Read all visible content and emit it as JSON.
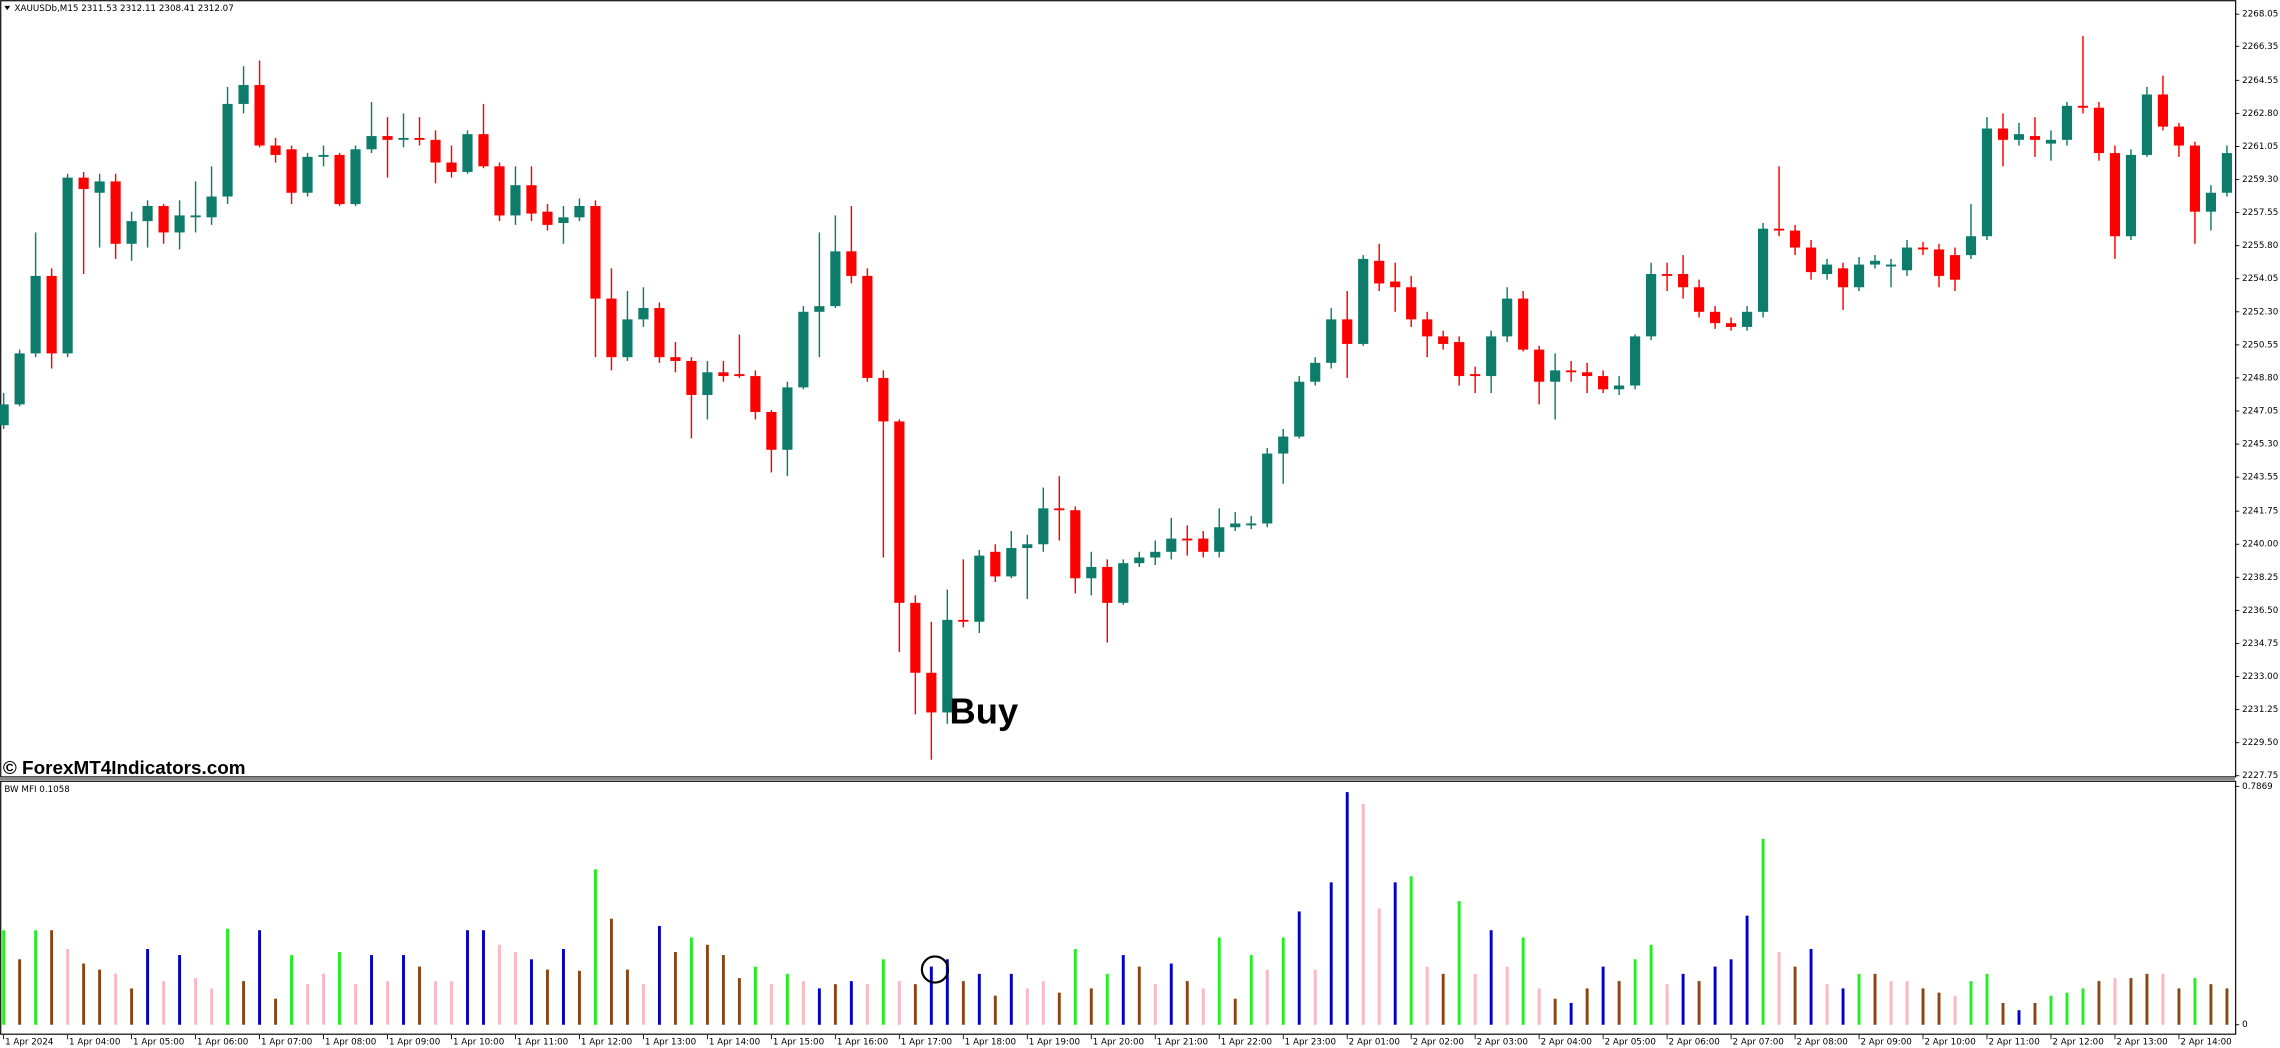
{
  "chart_data": [
    {
      "type": "candlestick",
      "title": "XAUUSDb,M15  2311.53 2312.11 2308.41 2312.07",
      "watermark": "© ForexMT4Indicators.com",
      "annotation": "Buy",
      "up_color": "#0e7c6b",
      "down_color": "#ff0000",
      "categories": [
        "1 Apr 2024",
        null,
        null,
        null,
        "1 Apr 04:00",
        null,
        null,
        null,
        "1 Apr 05:00",
        null,
        null,
        null,
        "1 Apr 06:00",
        null,
        null,
        null,
        "1 Apr 07:00",
        null,
        null,
        null,
        "1 Apr 08:00",
        null,
        null,
        null,
        "1 Apr 09:00",
        null,
        null,
        null,
        "1 Apr 10:00",
        null,
        null,
        null,
        "1 Apr 11:00",
        null,
        null,
        null,
        "1 Apr 12:00",
        null,
        null,
        null,
        "1 Apr 13:00",
        null,
        null,
        null,
        "1 Apr 14:00",
        null,
        null,
        null,
        "1 Apr 15:00",
        null,
        null,
        null,
        "1 Apr 16:00",
        null,
        null,
        null,
        "1 Apr 17:00",
        null,
        null,
        null,
        "1 Apr 18:00",
        null,
        null,
        null,
        "1 Apr 19:00",
        null,
        null,
        null,
        "1 Apr 20:00",
        null,
        null,
        null,
        "1 Apr 21:00",
        null,
        null,
        null,
        "1 Apr 22:00",
        null,
        null,
        null,
        "1 Apr 23:00",
        null,
        null,
        null,
        "2 Apr 01:00",
        null,
        null,
        null,
        "2 Apr 02:00",
        null,
        null,
        null,
        "2 Apr 03:00",
        null,
        null,
        null,
        "2 Apr 04:00",
        null,
        null,
        null,
        "2 Apr 05:00",
        null,
        null,
        null,
        "2 Apr 06:00",
        null,
        null,
        null,
        "2 Apr 07:00",
        null,
        null,
        null,
        "2 Apr 08:00",
        null,
        null,
        null,
        "2 Apr 09:00",
        null,
        null,
        null,
        "2 Apr 10:00",
        null,
        null,
        null,
        "2 Apr 11:00",
        null,
        null,
        null,
        "2 Apr 12:00",
        null,
        null,
        null,
        "2 Apr 13:00",
        null,
        null,
        null,
        "2 Apr 14:00",
        null,
        null,
        null
      ],
      "open": [
        2246.3,
        2247.4,
        2250.1,
        2254.2,
        2250.1,
        2259.4,
        2258.6,
        2259.2,
        2255.9,
        2257.1,
        2257.9,
        2256.5,
        2257.3,
        2257.3,
        2258.4,
        2263.3,
        2264.3,
        2261.1,
        2260.9,
        2258.6,
        2260.5,
        2260.6,
        2258.0,
        2260.9,
        2261.6,
        2261.4,
        2261.5,
        2261.4,
        2260.2,
        2259.7,
        2261.7,
        2260.0,
        2257.4,
        2259.0,
        2257.6,
        2257.0,
        2257.3,
        2257.9,
        2253.0,
        2249.9,
        2251.9,
        2252.5,
        2249.9,
        2249.7,
        2247.9,
        2249.1,
        2249.0,
        2248.9,
        2247.0,
        2245.0,
        2248.3,
        2252.3,
        2252.6,
        2255.5,
        2254.2,
        2248.8,
        2246.5,
        2236.9,
        2233.2,
        2231.1,
        2236.0,
        2235.9,
        2239.6,
        2238.3,
        2239.8,
        2240.0,
        2241.9,
        2241.8,
        2238.2,
        2238.8,
        2236.9,
        2239.0,
        2239.3,
        2239.6,
        2240.3,
        2240.3,
        2239.6,
        2240.9,
        2241.0,
        2241.1,
        2244.8,
        2245.7,
        2248.6,
        2249.6,
        2251.9,
        2250.6,
        2255.0,
        2253.9,
        2253.6,
        2251.9,
        2251.0,
        2250.7,
        2249.0,
        2248.9,
        2251.0,
        2253.0,
        2250.3,
        2248.6,
        2249.2,
        2249.1,
        2248.9,
        2248.2,
        2248.4,
        2251.0,
        2254.3,
        2254.3,
        2253.6,
        2252.3,
        2251.7,
        2251.5,
        2252.3,
        2256.7,
        2256.6,
        2255.7,
        2254.3,
        2254.6,
        2253.6,
        2254.8,
        2254.7,
        2254.5,
        2255.7,
        2255.6,
        2255.3,
        2255.3,
        2256.3,
        2262.0,
        2261.4,
        2261.6,
        2261.2,
        2261.4,
        2263.2,
        2263.1,
        2260.7,
        2256.3,
        2260.6,
        2263.8,
        2262.1,
        2261.1,
        2257.6,
        2258.6
      ],
      "high": [
        2248.0,
        2250.3,
        2256.5,
        2254.6,
        2259.6,
        2259.7,
        2259.6,
        2259.6,
        2257.6,
        2258.2,
        2258.0,
        2258.2,
        2259.2,
        2260.0,
        2264.2,
        2265.3,
        2265.6,
        2261.5,
        2261.1,
        2260.7,
        2261.1,
        2260.7,
        2261.1,
        2263.4,
        2262.6,
        2262.8,
        2262.6,
        2261.9,
        2261.1,
        2261.9,
        2263.3,
        2260.2,
        2260.0,
        2260.0,
        2258.0,
        2257.9,
        2258.3,
        2258.2,
        2254.6,
        2253.4,
        2253.6,
        2252.8,
        2250.7,
        2249.9,
        2249.7,
        2249.7,
        2251.1,
        2249.2,
        2247.1,
        2248.6,
        2252.6,
        2256.5,
        2257.4,
        2257.9,
        2254.6,
        2249.2,
        2246.6,
        2237.3,
        2235.9,
        2237.6,
        2239.2,
        2239.7,
        2240.0,
        2240.7,
        2240.5,
        2243.0,
        2243.6,
        2242.0,
        2239.6,
        2239.2,
        2239.2,
        2239.6,
        2240.2,
        2241.4,
        2241.0,
        2240.7,
        2241.9,
        2241.7,
        2241.5,
        2245.1,
        2246.1,
        2248.9,
        2249.9,
        2252.5,
        2253.4,
        2255.3,
        2255.9,
        2254.9,
        2254.2,
        2252.3,
        2251.3,
        2251.0,
        2249.4,
        2251.3,
        2253.6,
        2253.4,
        2250.5,
        2250.1,
        2249.7,
        2249.6,
        2249.2,
        2248.9,
        2251.1,
        2254.9,
        2254.9,
        2255.3,
        2254.0,
        2252.6,
        2252.0,
        2252.6,
        2257.0,
        2260.0,
        2256.9,
        2256.1,
        2255.1,
        2254.9,
        2255.2,
        2255.3,
        2255.1,
        2256.1,
        2256.0,
        2255.9,
        2255.7,
        2258.0,
        2262.6,
        2262.8,
        2262.3,
        2262.6,
        2261.9,
        2263.4,
        2266.9,
        2263.4,
        2261.1,
        2260.9,
        2264.2,
        2264.8,
        2262.3,
        2261.3,
        2259.0,
        2261.1
      ],
      "low": [
        2246.1,
        2247.3,
        2249.9,
        2249.3,
        2249.9,
        2254.3,
        2255.7,
        2255.1,
        2255.0,
        2255.7,
        2255.9,
        2255.6,
        2256.5,
        2256.9,
        2258.0,
        2262.8,
        2261.0,
        2260.2,
        2258.0,
        2258.4,
        2260.0,
        2257.9,
        2257.9,
        2260.7,
        2259.4,
        2261.0,
        2261.1,
        2259.1,
        2259.4,
        2259.6,
        2259.9,
        2257.1,
        2256.9,
        2257.1,
        2256.6,
        2255.9,
        2257.1,
        2249.9,
        2249.2,
        2249.7,
        2251.5,
        2249.6,
        2249.1,
        2245.6,
        2246.6,
        2248.6,
        2248.8,
        2246.6,
        2243.8,
        2243.6,
        2248.2,
        2249.9,
        2252.5,
        2253.8,
        2248.6,
        2239.3,
        2234.3,
        2231.0,
        2228.6,
        2230.5,
        2235.6,
        2235.3,
        2238.0,
        2238.2,
        2237.1,
        2239.6,
        2240.2,
        2237.4,
        2237.3,
        2234.8,
        2236.8,
        2238.8,
        2238.9,
        2239.2,
        2239.4,
        2239.3,
        2239.3,
        2240.7,
        2240.8,
        2240.9,
        2243.2,
        2245.6,
        2248.4,
        2249.3,
        2248.8,
        2250.5,
        2253.4,
        2252.3,
        2251.5,
        2249.9,
        2250.3,
        2248.4,
        2248.0,
        2248.0,
        2250.7,
        2250.2,
        2247.4,
        2246.6,
        2248.6,
        2248.0,
        2248.0,
        2247.9,
        2248.2,
        2250.8,
        2253.4,
        2253.0,
        2252.0,
        2251.4,
        2251.3,
        2251.3,
        2252.0,
        2256.3,
        2255.3,
        2254.0,
        2254.0,
        2252.4,
        2253.4,
        2254.6,
        2253.6,
        2254.2,
        2255.3,
        2253.6,
        2253.4,
        2255.1,
        2256.1,
        2260.0,
        2261.1,
        2260.5,
        2260.3,
        2261.1,
        2262.8,
        2260.3,
        2255.1,
        2256.1,
        2260.5,
        2261.9,
        2260.5,
        2255.9,
        2256.6,
        2258.4
      ],
      "close": [
        2247.4,
        2250.1,
        2254.2,
        2250.1,
        2259.4,
        2258.8,
        2259.2,
        2255.9,
        2257.1,
        2257.9,
        2256.5,
        2257.4,
        2257.4,
        2258.4,
        2263.3,
        2264.3,
        2261.1,
        2260.6,
        2258.6,
        2260.5,
        2260.6,
        2258.0,
        2260.9,
        2261.6,
        2261.4,
        2261.5,
        2261.4,
        2260.2,
        2259.7,
        2261.7,
        2260.0,
        2257.4,
        2259.0,
        2257.5,
        2256.9,
        2257.3,
        2257.9,
        2253.0,
        2249.9,
        2251.9,
        2252.5,
        2249.9,
        2249.7,
        2247.9,
        2249.1,
        2248.9,
        2248.9,
        2247.0,
        2245.0,
        2248.3,
        2252.3,
        2252.6,
        2255.5,
        2254.2,
        2248.8,
        2246.5,
        2236.9,
        2233.2,
        2231.1,
        2236.0,
        2235.9,
        2239.4,
        2238.3,
        2239.8,
        2240.0,
        2241.9,
        2241.8,
        2238.2,
        2238.8,
        2236.9,
        2239.0,
        2239.3,
        2239.6,
        2240.3,
        2240.2,
        2239.6,
        2240.9,
        2241.1,
        2241.1,
        2244.8,
        2245.7,
        2248.6,
        2249.6,
        2251.9,
        2250.6,
        2255.1,
        2253.8,
        2253.6,
        2251.9,
        2251.0,
        2250.6,
        2248.9,
        2248.9,
        2251.0,
        2253.0,
        2250.3,
        2248.6,
        2249.2,
        2249.1,
        2248.9,
        2248.2,
        2248.4,
        2251.0,
        2254.3,
        2254.2,
        2253.6,
        2252.3,
        2251.7,
        2251.5,
        2252.3,
        2256.7,
        2256.6,
        2255.7,
        2254.4,
        2254.8,
        2253.6,
        2254.8,
        2255.0,
        2254.8,
        2255.7,
        2255.6,
        2254.2,
        2254.0,
        2256.3,
        2262.0,
        2261.4,
        2261.7,
        2261.4,
        2261.4,
        2263.2,
        2263.1,
        2260.7,
        2256.3,
        2260.6,
        2263.8,
        2262.1,
        2261.1,
        2257.6,
        2258.6,
        2260.7
      ],
      "ylim": [
        2227.65,
        2268.8
      ],
      "yticks": [
        2268.05,
        2266.35,
        2264.55,
        {
          "value": 2262.8,
          "label": "2262.80"
        },
        2261.05,
        {
          "value": 2259.3,
          "label": "2259.30"
        },
        2257.55,
        {
          "value": 2255.8,
          "label": "2255.80"
        },
        2254.05,
        {
          "value": 2252.3,
          "label": "2252.30"
        },
        2250.55,
        {
          "value": 2248.8,
          "label": "2248.80"
        },
        2247.05,
        {
          "value": 2245.3,
          "label": "2245.30"
        },
        2243.55,
        2241.75,
        {
          "value": 2240,
          "label": "2240.00"
        },
        2238.25,
        {
          "value": 2236.5,
          "label": "2236.50"
        },
        2234.75,
        {
          "value": 2233,
          "label": "2233.00"
        },
        2231.25,
        {
          "value": 2229.5,
          "label": "2229.50"
        },
        2227.75
      ]
    },
    {
      "type": "bar",
      "title": "BW MFI 0.1058",
      "values": [
        0.312,
        0.216,
        0.312,
        0.312,
        0.25,
        0.202,
        0.182,
        0.168,
        0.12,
        0.25,
        0.144,
        0.23,
        0.154,
        0.12,
        0.317,
        0.144,
        0.312,
        0.086,
        0.23,
        0.134,
        0.168,
        0.24,
        0.134,
        0.23,
        0.144,
        0.23,
        0.192,
        0.144,
        0.144,
        0.312,
        0.312,
        0.264,
        0.24,
        0.216,
        0.182,
        0.25,
        0.178,
        0.513,
        0.35,
        0.182,
        0.134,
        0.326,
        0.24,
        0.288,
        0.264,
        0.23,
        0.154,
        0.192,
        0.134,
        0.168,
        0.144,
        0.12,
        0.134,
        0.144,
        0.134,
        0.216,
        0.144,
        0.134,
        0.192,
        0.216,
        0.144,
        0.168,
        0.096,
        0.168,
        0.12,
        0.144,
        0.106,
        0.25,
        0.12,
        0.168,
        0.23,
        0.192,
        0.134,
        0.202,
        0.144,
        0.12,
        0.288,
        0.086,
        0.23,
        0.182,
        0.288,
        0.374,
        0.182,
        0.47,
        0.768,
        0.729,
        0.384,
        0.47,
        0.49,
        0.192,
        0.168,
        0.408,
        0.168,
        0.312,
        0.192,
        0.288,
        0.12,
        0.086,
        0.072,
        0.12,
        0.192,
        0.144,
        0.216,
        0.264,
        0.134,
        0.168,
        0.144,
        0.192,
        0.216,
        0.36,
        0.614,
        0.24,
        0.192,
        0.25,
        0.134,
        0.12,
        0.168,
        0.168,
        0.144,
        0.144,
        0.12,
        0.106,
        0.096,
        0.144,
        0.168,
        0.072,
        0.048,
        0.072,
        0.096,
        0.106,
        0.12,
        0.144,
        0.154,
        0.154,
        0.168,
        0.168,
        0.12,
        0.154,
        0.134,
        0.12
      ],
      "colors": [
        "#22ee22",
        "#8b4513",
        "#22ee22",
        "#8b4513",
        "#ffb6c1",
        "#8b4513",
        "#8b4513",
        "#ffb6c1",
        "#8b4513",
        "#0000cc",
        "#ffb6c1",
        "#0000cc",
        "#ffb6c1",
        "#ffb6c1",
        "#22ee22",
        "#8b4513",
        "#0000cc",
        "#8b4513",
        "#22ee22",
        "#ffb6c1",
        "#ffb6c1",
        "#22ee22",
        "#ffb6c1",
        "#0000cc",
        "#ffb6c1",
        "#0000cc",
        "#8b4513",
        "#ffb6c1",
        "#ffb6c1",
        "#0000cc",
        "#0000cc",
        "#ffb6c1",
        "#ffb6c1",
        "#0000cc",
        "#8b4513",
        "#0000cc",
        "#8b4513",
        "#22ee22",
        "#8b4513",
        "#8b4513",
        "#ffb6c1",
        "#0000cc",
        "#8b4513",
        "#22ee22",
        "#8b4513",
        "#8b4513",
        "#8b4513",
        "#22ee22",
        "#ffb6c1",
        "#22ee22",
        "#ffb6c1",
        "#0000cc",
        "#8b4513",
        "#0000cc",
        "#ffb6c1",
        "#22ee22",
        "#ffb6c1",
        "#8b4513",
        "#0000cc",
        "#0000cc",
        "#8b4513",
        "#0000cc",
        "#8b4513",
        "#0000cc",
        "#ffb6c1",
        "#ffb6c1",
        "#8b4513",
        "#22ee22",
        "#8b4513",
        "#22ee22",
        "#0000cc",
        "#8b4513",
        "#ffb6c1",
        "#0000cc",
        "#8b4513",
        "#ffb6c1",
        "#22ee22",
        "#8b4513",
        "#22ee22",
        "#ffb6c1",
        "#22ee22",
        "#0000cc",
        "#ffb6c1",
        "#0000cc",
        "#0000cc",
        "#ffb6c1",
        "#ffb6c1",
        "#0000cc",
        "#22ee22",
        "#ffb6c1",
        "#8b4513",
        "#22ee22",
        "#ffb6c1",
        "#0000cc",
        "#ffb6c1",
        "#22ee22",
        "#ffb6c1",
        "#8b4513",
        "#0000cc",
        "#8b4513",
        "#0000cc",
        "#8b4513",
        "#22ee22",
        "#22ee22",
        "#ffb6c1",
        "#0000cc",
        "#8b4513",
        "#0000cc",
        "#0000cc",
        "#0000cc",
        "#22ee22",
        "#ffb6c1",
        "#8b4513",
        "#0000cc",
        "#ffb6c1",
        "#0000cc",
        "#22ee22",
        "#8b4513",
        "#ffb6c1",
        "#ffb6c1",
        "#8b4513",
        "#8b4513",
        "#ffb6c1",
        "#22ee22",
        "#22ee22",
        "#8b4513",
        "#0000cc",
        "#8b4513",
        "#22ee22",
        "#22ee22",
        "#22ee22",
        "#8b4513",
        "#ffb6c1",
        "#8b4513",
        "#8b4513",
        "#ffb6c1",
        "#8b4513",
        "#22ee22",
        "#8b4513",
        "#8b4513"
      ],
      "ylim": [
        0,
        0.7869
      ],
      "yticks": [
        0.7869,
        0
      ]
    }
  ]
}
